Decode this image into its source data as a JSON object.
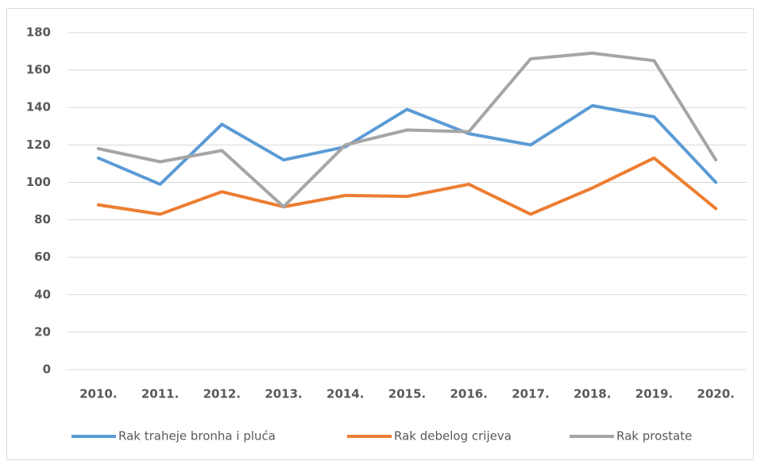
{
  "chart_data": {
    "type": "line",
    "categories": [
      "2010.",
      "2011.",
      "2012.",
      "2013.",
      "2014.",
      "2015.",
      "2016.",
      "2017.",
      "2018.",
      "2019.",
      "2020."
    ],
    "series": [
      {
        "name": "Rak traheje bronha i pluća",
        "color": "#5b9bd5",
        "values": [
          113,
          99,
          131,
          112,
          119,
          139,
          126,
          120,
          141,
          135,
          100
        ]
      },
      {
        "name": "Rak debelog crijeva",
        "color": "#ed7d31",
        "values": [
          88,
          83,
          95,
          87,
          93,
          92.5,
          99,
          83,
          97,
          113,
          86
        ]
      },
      {
        "name": "Rak prostate",
        "color": "#a5a5a5",
        "values": [
          118,
          111,
          117,
          87,
          120,
          128,
          127,
          166,
          169,
          165,
          112
        ]
      }
    ],
    "ylim": [
      0,
      180
    ],
    "yticks": [
      0,
      20,
      40,
      60,
      80,
      100,
      120,
      140,
      160,
      180
    ],
    "grid": true,
    "legend": "bottom"
  }
}
